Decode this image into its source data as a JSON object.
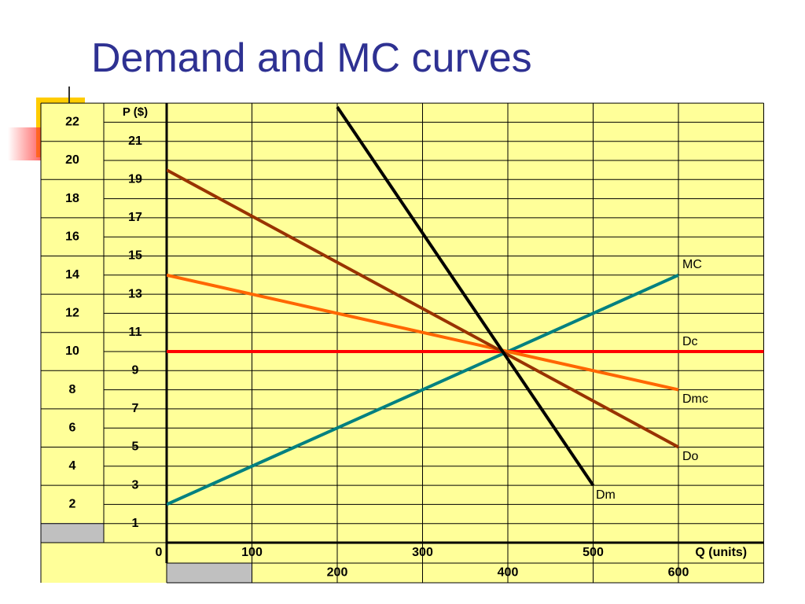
{
  "slide": {
    "title": "Demand and MC curves"
  },
  "chart_data": {
    "type": "line",
    "y_axis_label": "P ($)",
    "x_axis_label": "Q (units)",
    "origin_label": "0",
    "left_column_labels": [
      "22",
      "20",
      "18",
      "16",
      "14",
      "12",
      "10",
      "8",
      "6",
      "4",
      "2"
    ],
    "right_column_labels": [
      "21",
      "19",
      "17",
      "15",
      "13",
      "11",
      "9",
      "7",
      "5",
      "3",
      "1"
    ],
    "x_tick_labels_row1": [
      "100",
      "300",
      "500"
    ],
    "x_tick_labels_row2": [
      "200",
      "400",
      "600"
    ],
    "xlim": [
      0,
      700
    ],
    "ylim": [
      0,
      23
    ],
    "series": [
      {
        "name": "MC",
        "color": "#008080",
        "points": [
          [
            0,
            2
          ],
          [
            600,
            14
          ]
        ]
      },
      {
        "name": "Dc",
        "color": "#ff0000",
        "points": [
          [
            0,
            10
          ],
          [
            700,
            10
          ]
        ]
      },
      {
        "name": "Dmc",
        "color": "#ff6600",
        "points": [
          [
            0,
            14
          ],
          [
            600,
            8
          ]
        ]
      },
      {
        "name": "Do",
        "color": "#993300",
        "points": [
          [
            0,
            19.5
          ],
          [
            600,
            5
          ]
        ]
      },
      {
        "name": "Dm",
        "color": "#000000",
        "points": [
          [
            200,
            22.8
          ],
          [
            500,
            3
          ]
        ]
      }
    ],
    "grid": true,
    "background_color": "#ffff99"
  }
}
